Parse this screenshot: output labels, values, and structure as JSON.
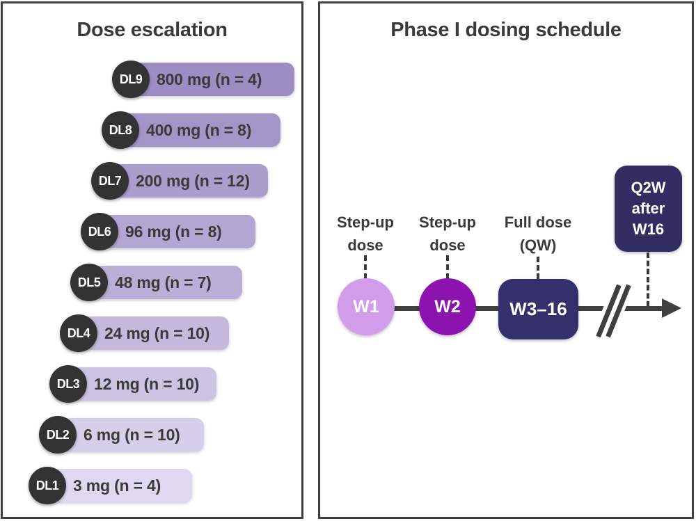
{
  "left_panel": {
    "title": "Dose escalation",
    "badge_color": "#333333",
    "rows": [
      {
        "label": "DL9",
        "text": "800 mg (n = 4)",
        "bar_color": "#9a8ec3"
      },
      {
        "label": "DL8",
        "text": "400 mg (n = 8)",
        "bar_color": "#a296c8"
      },
      {
        "label": "DL7",
        "text": "200 mg (n = 12)",
        "bar_color": "#aa9ecd"
      },
      {
        "label": "DL6",
        "text": "96 mg (n = 8)",
        "bar_color": "#b2a7d2"
      },
      {
        "label": "DL5",
        "text": "48 mg (n = 7)",
        "bar_color": "#bab0d7"
      },
      {
        "label": "DL4",
        "text": "24 mg (n = 10)",
        "bar_color": "#c3badd"
      },
      {
        "label": "DL3",
        "text": "12 mg (n = 10)",
        "bar_color": "#ccc4e3"
      },
      {
        "label": "DL2",
        "text": "6 mg (n = 10)",
        "bar_color": "#d5cfe9"
      },
      {
        "label": "DL1",
        "text": "3 mg (n = 4)",
        "bar_color": "#ded9f0"
      }
    ]
  },
  "right_panel": {
    "title": "Phase I dosing schedule",
    "annotations": [
      {
        "line1": "Step-up",
        "line2": "dose"
      },
      {
        "line1": "Step-up",
        "line2": "dose"
      },
      {
        "line1": "Full dose",
        "line2": "(QW)"
      }
    ],
    "timeline": {
      "axis_color": "#3f3f3f",
      "nodes": [
        {
          "label": "W1",
          "shape": "circle",
          "color": "#d19ce9"
        },
        {
          "label": "W2",
          "shape": "circle",
          "color": "#8c13ad"
        },
        {
          "label": "W3–16",
          "shape": "rounded-rect",
          "color": "#34306b"
        }
      ],
      "offset_box": {
        "line1": "Q2W",
        "line2": "after",
        "line3": "W16",
        "color": "#322e62"
      }
    }
  }
}
